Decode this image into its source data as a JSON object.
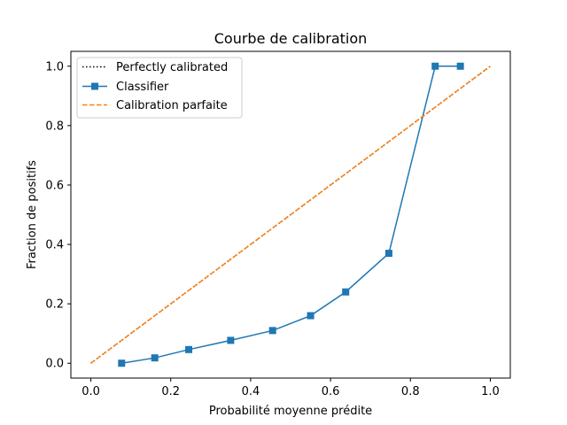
{
  "chart_data": {
    "type": "line",
    "title": "Courbe de calibration",
    "xlabel": "Probabilité moyenne prédite",
    "ylabel": "Fraction de positifs",
    "xlim": [
      -0.05,
      1.05
    ],
    "ylim": [
      -0.05,
      1.05
    ],
    "x_ticks": [
      0.0,
      0.2,
      0.4,
      0.6,
      0.8,
      1.0
    ],
    "x_tick_labels": [
      "0.0",
      "0.2",
      "0.4",
      "0.6",
      "0.8",
      "1.0"
    ],
    "y_ticks": [
      0.0,
      0.2,
      0.4,
      0.6,
      0.8,
      1.0
    ],
    "y_tick_labels": [
      "0.0",
      "0.2",
      "0.4",
      "0.6",
      "0.8",
      "1.0"
    ],
    "grid": false,
    "legend_position": "top-left",
    "series": [
      {
        "name": "Perfectly calibrated",
        "style": "dotted",
        "color": "#000000",
        "x": [
          0,
          1
        ],
        "y": [
          0,
          1
        ]
      },
      {
        "name": "Classifier",
        "style": "solid",
        "marker": "square",
        "color": "#1f77b4",
        "x": [
          0.077,
          0.16,
          0.245,
          0.35,
          0.455,
          0.55,
          0.638,
          0.746,
          0.862,
          0.925
        ],
        "y": [
          0.0,
          0.018,
          0.046,
          0.077,
          0.11,
          0.16,
          0.24,
          0.37,
          1.0,
          1.0
        ]
      },
      {
        "name": "Calibration parfaite",
        "style": "dashed",
        "color": "#ff7f0e",
        "x": [
          0,
          1
        ],
        "y": [
          0,
          1
        ]
      }
    ]
  }
}
